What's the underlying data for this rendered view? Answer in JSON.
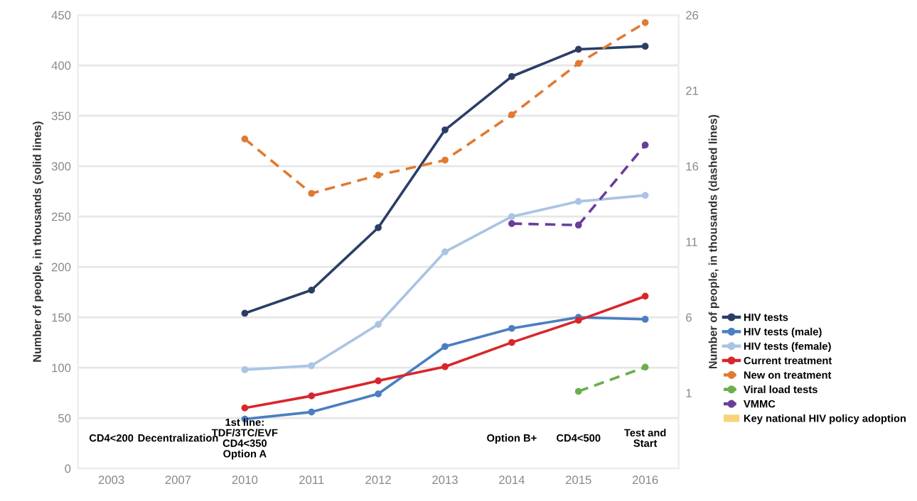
{
  "chart_data": {
    "type": "line",
    "ylabel": "Number of people, in thousands (solid lines)",
    "y2label": "Number of people, in thousands (dashed lines)",
    "categories": [
      "2003",
      "2007",
      "2010",
      "2011",
      "2012",
      "2013",
      "2014",
      "2015",
      "2016"
    ],
    "ylim": [
      0,
      450
    ],
    "yticks": [
      0,
      50,
      100,
      150,
      200,
      250,
      300,
      350,
      400,
      450
    ],
    "y2lim": [
      -4,
      26
    ],
    "y2ticks": [
      1,
      6,
      11,
      16,
      21,
      26
    ],
    "grid": "y",
    "legend": "right",
    "marker": "circle",
    "series": [
      {
        "name": "HIV tests",
        "color": "#2c3e66",
        "line_style": "solid",
        "values": [
          null,
          null,
          154,
          177,
          239,
          336,
          389,
          416,
          419
        ]
      },
      {
        "name": "HIV tests (male)",
        "color": "#4a7fc1",
        "line_style": "solid",
        "values": [
          null,
          null,
          49,
          56,
          74,
          121,
          139,
          150,
          148
        ]
      },
      {
        "name": "HIV tests (female)",
        "color": "#a9c4e4",
        "line_style": "solid",
        "values": [
          null,
          null,
          98,
          102,
          143,
          215,
          250,
          265,
          271
        ]
      },
      {
        "name": "Current treatment",
        "color": "#d9262b",
        "line_style": "solid",
        "values": [
          null,
          null,
          60,
          72,
          87,
          101,
          125,
          147,
          171
        ]
      },
      {
        "name": "New on treatment",
        "color": "#e07a32",
        "line_style": "dashed",
        "axis": "y2",
        "values": [
          null,
          null,
          17.8,
          14.2,
          15.4,
          16.4,
          19.4,
          22.8,
          25.5
        ]
      },
      {
        "name": "Viral load tests",
        "color": "#6ab04c",
        "line_style": "dashed",
        "axis": "y2",
        "values": [
          null,
          null,
          null,
          null,
          null,
          null,
          null,
          1.1,
          2.7
        ]
      },
      {
        "name": "VMMC",
        "color": "#6a3d9a",
        "line_style": "dashed",
        "axis": "y2",
        "values": [
          null,
          null,
          null,
          null,
          null,
          null,
          12.2,
          12.1,
          17.4
        ]
      },
      {
        "name": "Key national HIV policy adoption",
        "color": "#f9d27a",
        "type": "bar",
        "values": [
          null,
          null,
          null,
          null,
          null,
          null,
          null,
          null,
          null
        ],
        "value_labels": [
          "CD4<200",
          "Decentralization",
          "1st line:\nTDF/3TC/EVF\nCD4<350\nOption A",
          null,
          null,
          null,
          "Option B+",
          "CD4<500",
          "Test and\nStart"
        ]
      }
    ]
  }
}
